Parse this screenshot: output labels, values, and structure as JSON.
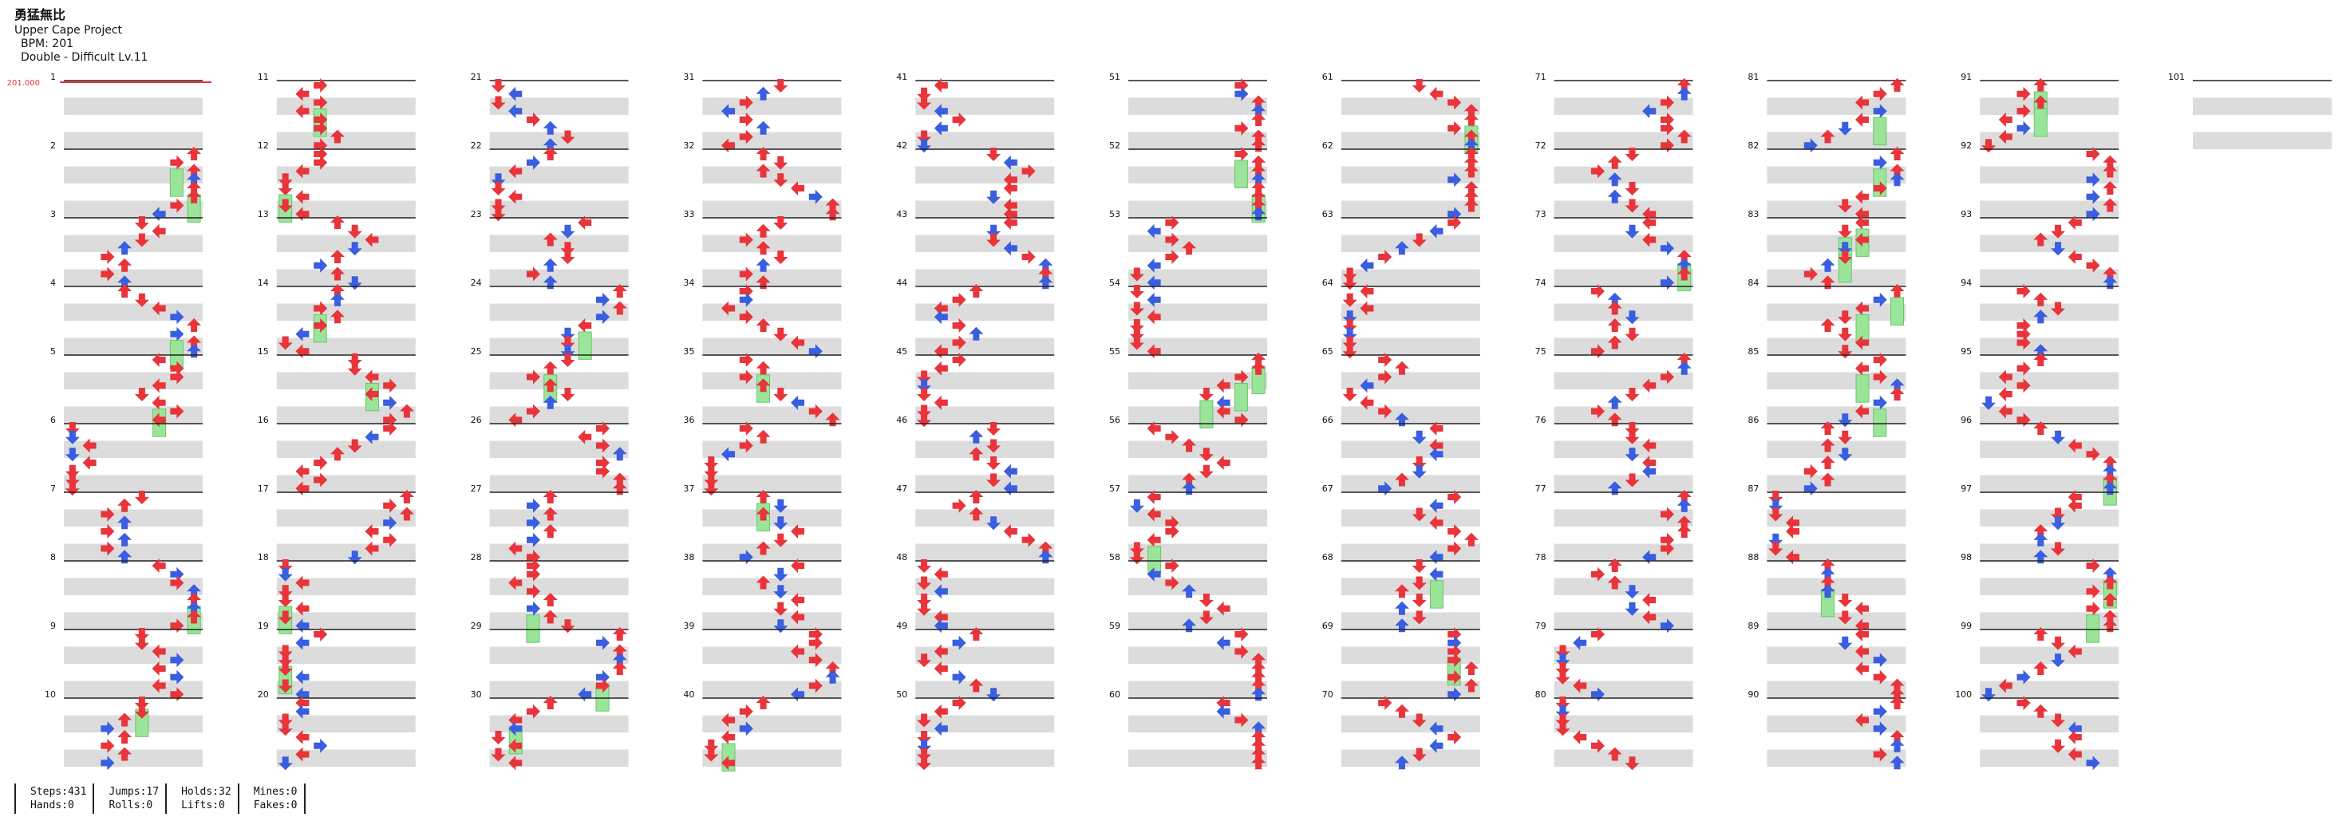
{
  "song": {
    "title": "勇猛無比",
    "artist": "Upper Cape Project",
    "bpm_line": "BPM: 201",
    "chart_line": "Double - Difficult Lv.11"
  },
  "bpm_marker": "201.000",
  "stats": [
    {
      "top": "Steps:431",
      "bottom": "Hands:0"
    },
    {
      "top": "Jumps:17",
      "bottom": "Rolls:0"
    },
    {
      "top": "Holds:32",
      "bottom": "Lifts:0"
    },
    {
      "top": "Mines:0",
      "bottom": "Fakes:0"
    }
  ],
  "colors": {
    "quarter": "#e8343a",
    "eighth": "#3a5ee0",
    "sixteenth": "#a040e0",
    "hold": "#9be59b",
    "band": "#dcdcdc"
  },
  "measure_count": 101
}
